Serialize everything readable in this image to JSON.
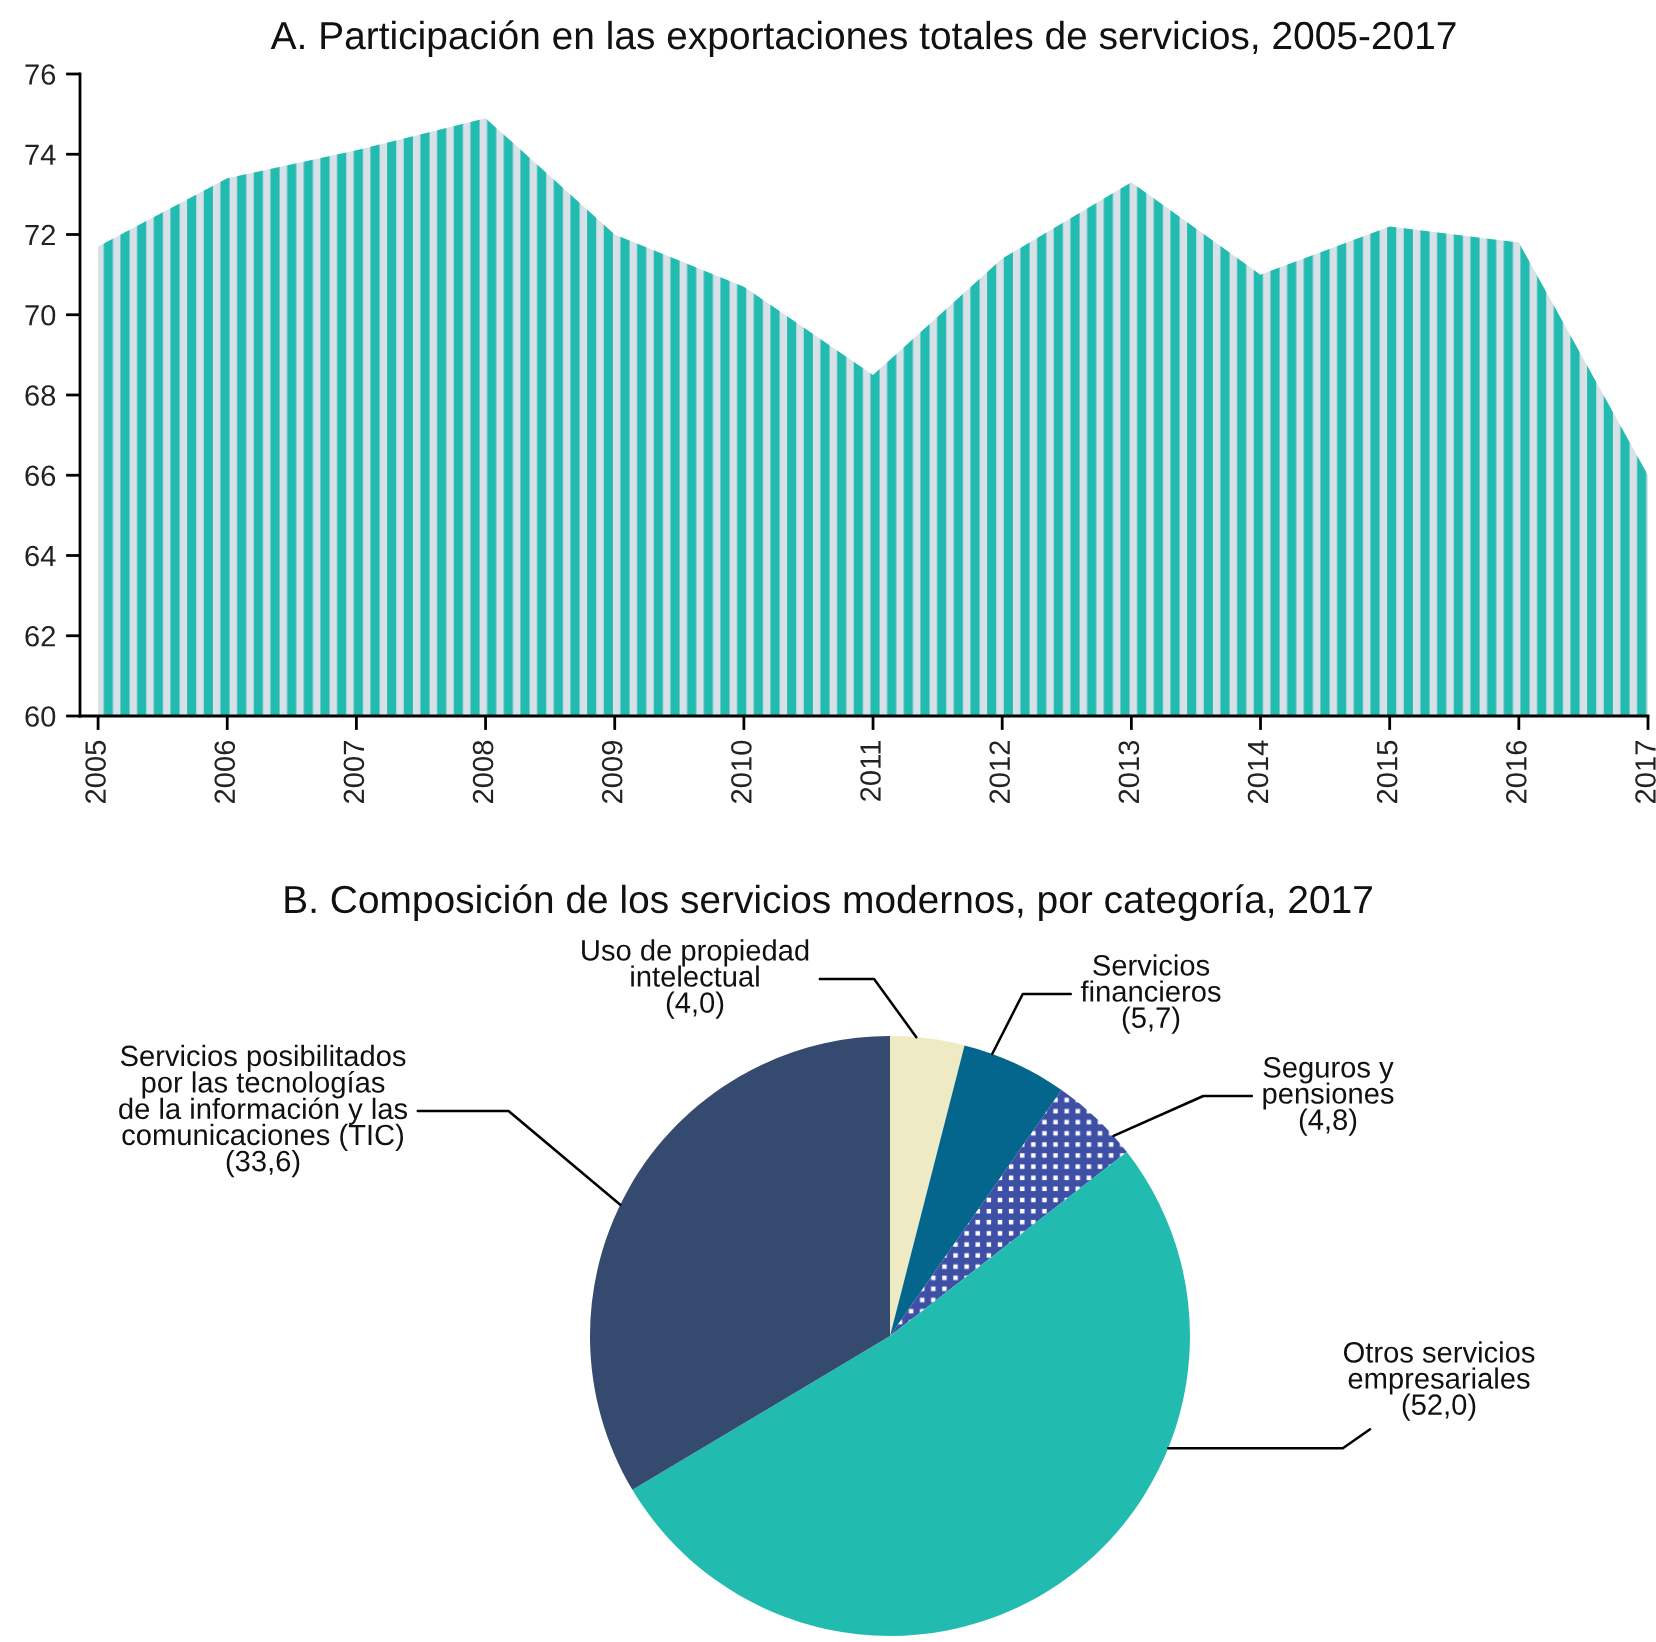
{
  "chart_data": [
    {
      "type": "area",
      "title": "A. Participación en las exportaciones totales de servicios, 2005-2017",
      "x": [
        2005,
        2006,
        2007,
        2008,
        2009,
        2010,
        2011,
        2012,
        2013,
        2014,
        2015,
        2016,
        2017
      ],
      "series": [
        {
          "color": "#22bbb0",
          "values": [
            71.7,
            73.4,
            74.1,
            74.9,
            72.0,
            70.7,
            68.5,
            71.4,
            73.3,
            71.0,
            72.2,
            71.8,
            66.0
          ]
        }
      ],
      "xlim": [
        2004.86,
        2017
      ],
      "xticks": [
        2005,
        2006,
        2007,
        2008,
        2009,
        2010,
        2011,
        2012,
        2013,
        2014,
        2015,
        2016,
        2017
      ],
      "ylim": [
        60,
        76
      ],
      "yticks": [
        60,
        62,
        64,
        66,
        68,
        70,
        72,
        74,
        76
      ]
    },
    {
      "type": "pie",
      "title": "B. Composición de los servicios modernos, por categoría, 2017",
      "categories": [
        "Uso de propiedad\nintelectual",
        "Servicios\nfinancieros",
        "Seguros y\npensiones",
        "Otros servicios\nempresariales",
        "Servicios posibilitados\npor las tecnologías\nde la información y las\ncomunicaciones (TIC)"
      ],
      "values": [
        4.0,
        5.7,
        4.8,
        52.0,
        33.6
      ],
      "colors": [
        "#eeeac4",
        "#05668d",
        "#3e4fa6",
        "#22bbb0",
        "#354a6f"
      ],
      "value_labels": [
        "(4,0)",
        "(5,7)",
        "(4,8)",
        "(52,0)",
        "(33,6)"
      ]
    }
  ]
}
